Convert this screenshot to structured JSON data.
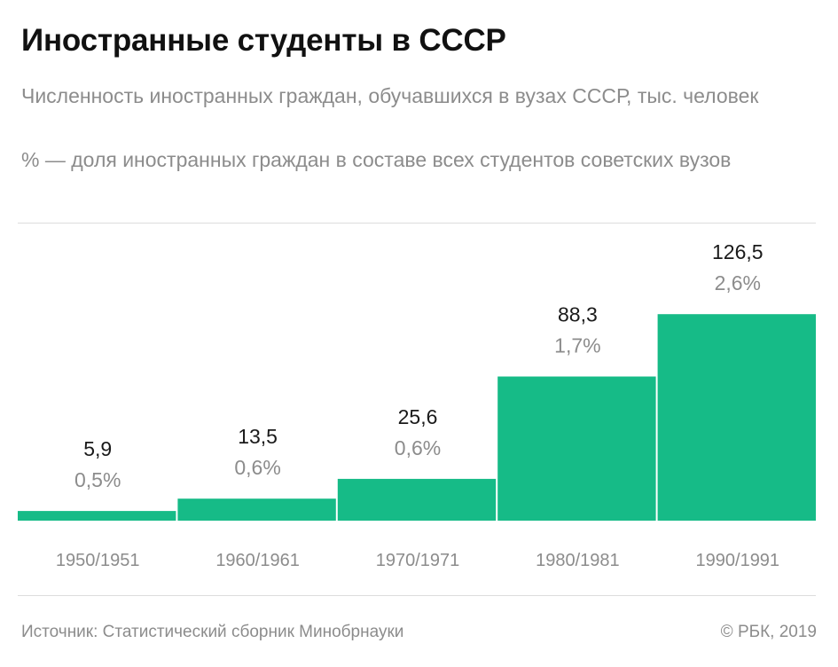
{
  "header": {
    "title": "Иностранные студенты в СССР",
    "subtitle_1": "Численность иностранных граждан, обучавшихся в вузах СССР, тыс. человек",
    "subtitle_2": "% — доля иностранных граждан в составе всех студентов советских вузов"
  },
  "footer": {
    "source": "Источник: Статистический сборник Минобрнауки",
    "copyright": "© РБК, 2019"
  },
  "colors": {
    "bar": "#16bb87",
    "value_text": "#1a1a1a",
    "percent_text": "#8c8c8c",
    "category_text": "#8c8c8c"
  },
  "chart_data": {
    "type": "bar",
    "categories": [
      "1950/1951",
      "1960/1961",
      "1970/1971",
      "1980/1981",
      "1990/1991"
    ],
    "values": [
      5.9,
      13.5,
      25.6,
      88.3,
      126.5
    ],
    "value_labels": [
      "5,9",
      "13,5",
      "25,6",
      "88,3",
      "126,5"
    ],
    "percent_labels": [
      "0,5%",
      "0,6%",
      "0,6%",
      "1,7%",
      "2,6%"
    ],
    "percent_values": [
      0.5,
      0.6,
      0.6,
      1.7,
      2.6
    ],
    "grid": false,
    "legend": "none"
  }
}
